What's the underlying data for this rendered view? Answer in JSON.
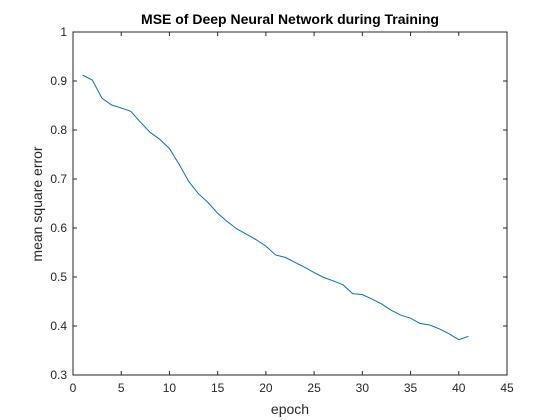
{
  "chart_data": {
    "type": "line",
    "title": "MSE of Deep Neural Network during Training",
    "xlabel": "epoch",
    "ylabel": "mean square error",
    "xlim": [
      0,
      45
    ],
    "ylim": [
      0.3,
      1
    ],
    "x_ticks": [
      "0",
      "5",
      "10",
      "15",
      "20",
      "25",
      "30",
      "35",
      "40",
      "45"
    ],
    "y_ticks": [
      "0.3",
      "0.4",
      "0.5",
      "0.6",
      "0.7",
      "0.8",
      "0.9",
      "1"
    ],
    "grid": false,
    "line_color": "#0072bd",
    "series": [
      {
        "x": [
          1,
          2,
          3,
          4,
          5,
          6,
          7,
          8,
          9,
          10,
          11,
          12,
          13,
          14,
          15,
          16,
          17,
          18,
          19,
          20,
          21,
          22,
          23,
          24,
          25,
          26,
          27,
          28,
          29,
          30,
          31,
          32,
          33,
          34,
          35,
          36,
          37,
          38,
          39,
          40,
          41
        ],
        "values": [
          0.912,
          0.902,
          0.865,
          0.851,
          0.845,
          0.838,
          0.816,
          0.795,
          0.781,
          0.762,
          0.73,
          0.695,
          0.67,
          0.652,
          0.63,
          0.613,
          0.598,
          0.587,
          0.576,
          0.563,
          0.545,
          0.54,
          0.53,
          0.52,
          0.509,
          0.499,
          0.492,
          0.484,
          0.466,
          0.464,
          0.455,
          0.445,
          0.432,
          0.422,
          0.416,
          0.405,
          0.402,
          0.394,
          0.384,
          0.372,
          0.379
        ]
      }
    ]
  }
}
